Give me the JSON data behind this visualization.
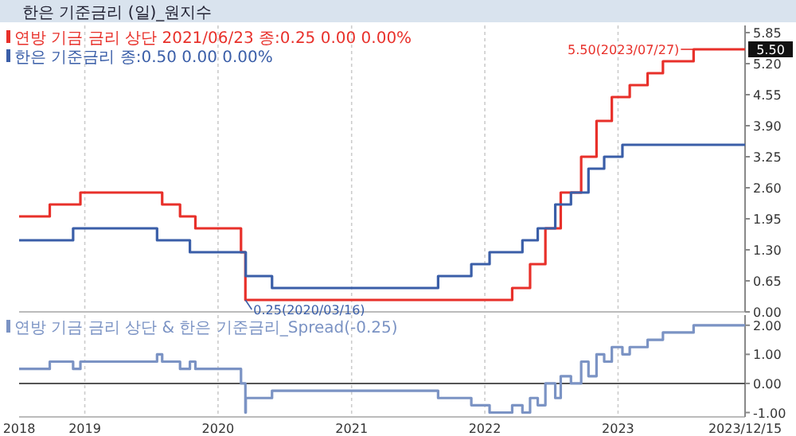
{
  "chart_data": [
    {
      "type": "step",
      "title": "한은 기준금리 (일)_원지수",
      "series": [
        {
          "name": "연방 기금 금리 상단 2021/06/23 종:0.25 0.00 0.00%",
          "color": "#e8302a",
          "x": [
            "2018-07-05",
            "2018-09-27",
            "2018-12-20",
            "2019-08-01",
            "2019-09-19",
            "2019-10-31",
            "2020-03-04",
            "2020-03-16",
            "2022-03-17",
            "2022-05-05",
            "2022-06-16",
            "2022-07-28",
            "2022-09-22",
            "2022-11-03",
            "2022-12-15",
            "2023-02-02",
            "2023-03-23",
            "2023-05-04",
            "2023-07-27",
            "2023-12-15"
          ],
          "values": [
            2.0,
            2.25,
            2.5,
            2.25,
            2.0,
            1.75,
            1.25,
            0.25,
            0.5,
            1.0,
            1.75,
            2.5,
            3.25,
            4.0,
            4.5,
            4.75,
            5.0,
            5.25,
            5.5,
            5.5
          ]
        },
        {
          "name": "한은 기준금리 종:0.50 0.00 0.00%",
          "color": "#3a5ea8",
          "x": [
            "2018-07-05",
            "2018-11-30",
            "2019-07-18",
            "2019-10-16",
            "2020-03-17",
            "2020-05-28",
            "2021-08-26",
            "2021-11-25",
            "2022-01-14",
            "2022-04-14",
            "2022-05-26",
            "2022-07-13",
            "2022-08-25",
            "2022-10-12",
            "2022-11-24",
            "2023-01-13",
            "2023-12-15"
          ],
          "values": [
            1.5,
            1.75,
            1.5,
            1.25,
            0.75,
            0.5,
            0.75,
            1.0,
            1.25,
            1.5,
            1.75,
            2.25,
            2.5,
            3.0,
            3.25,
            3.5,
            3.5
          ]
        }
      ],
      "xlim": [
        "2018-07-05",
        "2023-12-15"
      ],
      "xticks": [
        {
          "value": "2018-07-05",
          "label": "2018"
        },
        {
          "value": "2019-01-01",
          "label": "2019"
        },
        {
          "value": "2020-01-01",
          "label": "2020"
        },
        {
          "value": "2021-01-01",
          "label": "2021"
        },
        {
          "value": "2022-01-01",
          "label": "2022"
        },
        {
          "value": "2023-01-01",
          "label": "2023"
        },
        {
          "value": "2023-12-15",
          "label": "2023/12/15"
        }
      ],
      "ylim": [
        0,
        6.0
      ],
      "yticks": [
        {
          "value": 0,
          "label": "0.00"
        },
        {
          "value": 0.65,
          "label": "0.65"
        },
        {
          "value": 1.3,
          "label": "1.30"
        },
        {
          "value": 1.95,
          "label": "1.95"
        },
        {
          "value": 2.6,
          "label": "2.60"
        },
        {
          "value": 3.25,
          "label": "3.25"
        },
        {
          "value": 3.9,
          "label": "3.90"
        },
        {
          "value": 4.55,
          "label": "4.55"
        },
        {
          "value": 5.2,
          "label": "5.20"
        },
        {
          "value": 5.85,
          "label": "5.85"
        }
      ],
      "tick_labels": "y",
      "grid": "x",
      "legend": "top left",
      "annotations": [
        {
          "text": "5.50(2023/07/27)",
          "x": "2023-07-27",
          "y": 5.5
        },
        {
          "text": "0.25(2020/03/16)",
          "x": "2020-03-16",
          "y": 0.25
        },
        {
          "text": "5.50",
          "x": "2023-12-15",
          "y": 5.5
        }
      ]
    },
    {
      "type": "step",
      "series": [
        {
          "name": "연방 기금 금리 상단 & 한은 기준금리_Spread(-0.25)",
          "color": "#7b93c4",
          "x": [
            "2018-07-05",
            "2018-09-27",
            "2018-11-30",
            "2018-12-20",
            "2019-07-18",
            "2019-08-01",
            "2019-09-19",
            "2019-10-16",
            "2019-10-31",
            "2020-03-04",
            "2020-03-16",
            "2020-03-17",
            "2020-05-28",
            "2021-08-26",
            "2021-11-25",
            "2022-01-14",
            "2022-03-17",
            "2022-04-14",
            "2022-05-05",
            "2022-05-26",
            "2022-06-16",
            "2022-07-13",
            "2022-07-28",
            "2022-08-25",
            "2022-09-22",
            "2022-10-12",
            "2022-11-03",
            "2022-11-24",
            "2022-12-15",
            "2023-01-13",
            "2023-02-02",
            "2023-03-23",
            "2023-05-04",
            "2023-07-27",
            "2023-12-15"
          ],
          "values": [
            0.5,
            0.75,
            0.5,
            0.75,
            1.0,
            0.75,
            0.5,
            0.75,
            0.5,
            0.0,
            -1.0,
            -0.5,
            -0.25,
            -0.5,
            -0.75,
            -1.0,
            -0.75,
            -1.0,
            -0.5,
            -0.75,
            0.0,
            -0.5,
            0.25,
            0.0,
            0.75,
            0.25,
            1.0,
            0.75,
            1.25,
            1.0,
            1.25,
            1.5,
            1.75,
            2.0,
            2.0
          ]
        }
      ],
      "xlim": [
        "2018-07-05",
        "2023-12-15"
      ],
      "xticks": [
        {
          "value": "2018-07-05",
          "label": "2018"
        },
        {
          "value": "2019-01-01",
          "label": "2019"
        },
        {
          "value": "2020-01-01",
          "label": "2020"
        },
        {
          "value": "2021-01-01",
          "label": "2021"
        },
        {
          "value": "2022-01-01",
          "label": "2022"
        },
        {
          "value": "2023-01-01",
          "label": "2023"
        },
        {
          "value": "2023-12-15",
          "label": "2023/12/15"
        }
      ],
      "ylim": [
        -1.15,
        2.35
      ],
      "yticks": [
        {
          "value": -1,
          "label": "-1.00"
        },
        {
          "value": 0,
          "label": "0.00"
        },
        {
          "value": 1,
          "label": "1.00"
        },
        {
          "value": 2,
          "label": "2.00"
        }
      ],
      "grid": "x",
      "legend": "top left",
      "ref_lines": [
        {
          "axis": "y",
          "value": 0,
          "color": "#555555"
        }
      ]
    }
  ]
}
